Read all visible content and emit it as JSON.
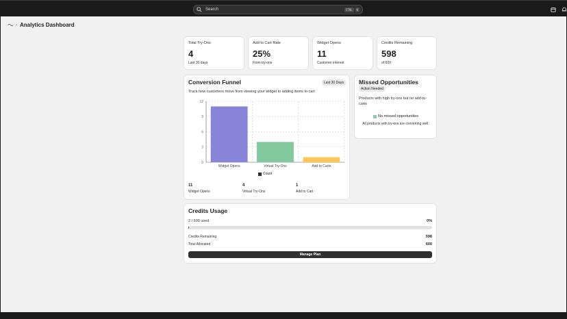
{
  "topbar": {
    "search_placeholder": "Search",
    "shortcut_key1": "CTRL",
    "shortcut_key2": "K"
  },
  "header": {
    "title": "Analytics Dashboard"
  },
  "stats": [
    {
      "label": "Total Try-Ons",
      "value": "4",
      "sub": "Last 30 days"
    },
    {
      "label": "Add to Cart Rate",
      "value": "25%",
      "sub": "From try-ons"
    },
    {
      "label": "Widget Opens",
      "value": "11",
      "sub": "Customer interest"
    },
    {
      "label": "Credits Remaining",
      "value": "598",
      "sub": "of 600"
    }
  ],
  "funnel": {
    "title": "Conversion Funnel",
    "badge": "Last 30 Days",
    "description": "Track how customers move from viewing your widget to adding items to cart",
    "metrics": [
      {
        "value": "11",
        "label": "Widget Opens"
      },
      {
        "value": "4",
        "label": "Virtual Try-Ons"
      },
      {
        "value": "1",
        "label": "Add to Cart"
      }
    ]
  },
  "chart_data": {
    "type": "bar",
    "categories": [
      "Widget Opens",
      "Virtual Try-Ons",
      "Add to Carts"
    ],
    "series": [
      {
        "name": "Count",
        "values": [
          11,
          4,
          1
        ]
      }
    ],
    "colors": [
      "#8884d8",
      "#82ca9d",
      "#ffc658"
    ],
    "yticks": [
      "0",
      "3",
      "6",
      "9",
      "12"
    ],
    "ylim": [
      0,
      12
    ],
    "grid": true,
    "legend": "bottom"
  },
  "missed": {
    "title": "Missed Opportunities",
    "badge": "Action Needed",
    "description": "Products with high try-ons but no add-to-carts",
    "empty_title": "No missed opportunities",
    "empty_sub": "All products with try-ons are converting well."
  },
  "credits": {
    "title": "Credits Usage",
    "used_text": "2 / 600 used",
    "percent_text": "0%",
    "used_fraction": 0.0033,
    "remaining_label": "Credits Remaining",
    "remaining_value": "598",
    "allocated_label": "Total Allocated",
    "allocated_value": "600",
    "button_label": "Manage Plan"
  }
}
